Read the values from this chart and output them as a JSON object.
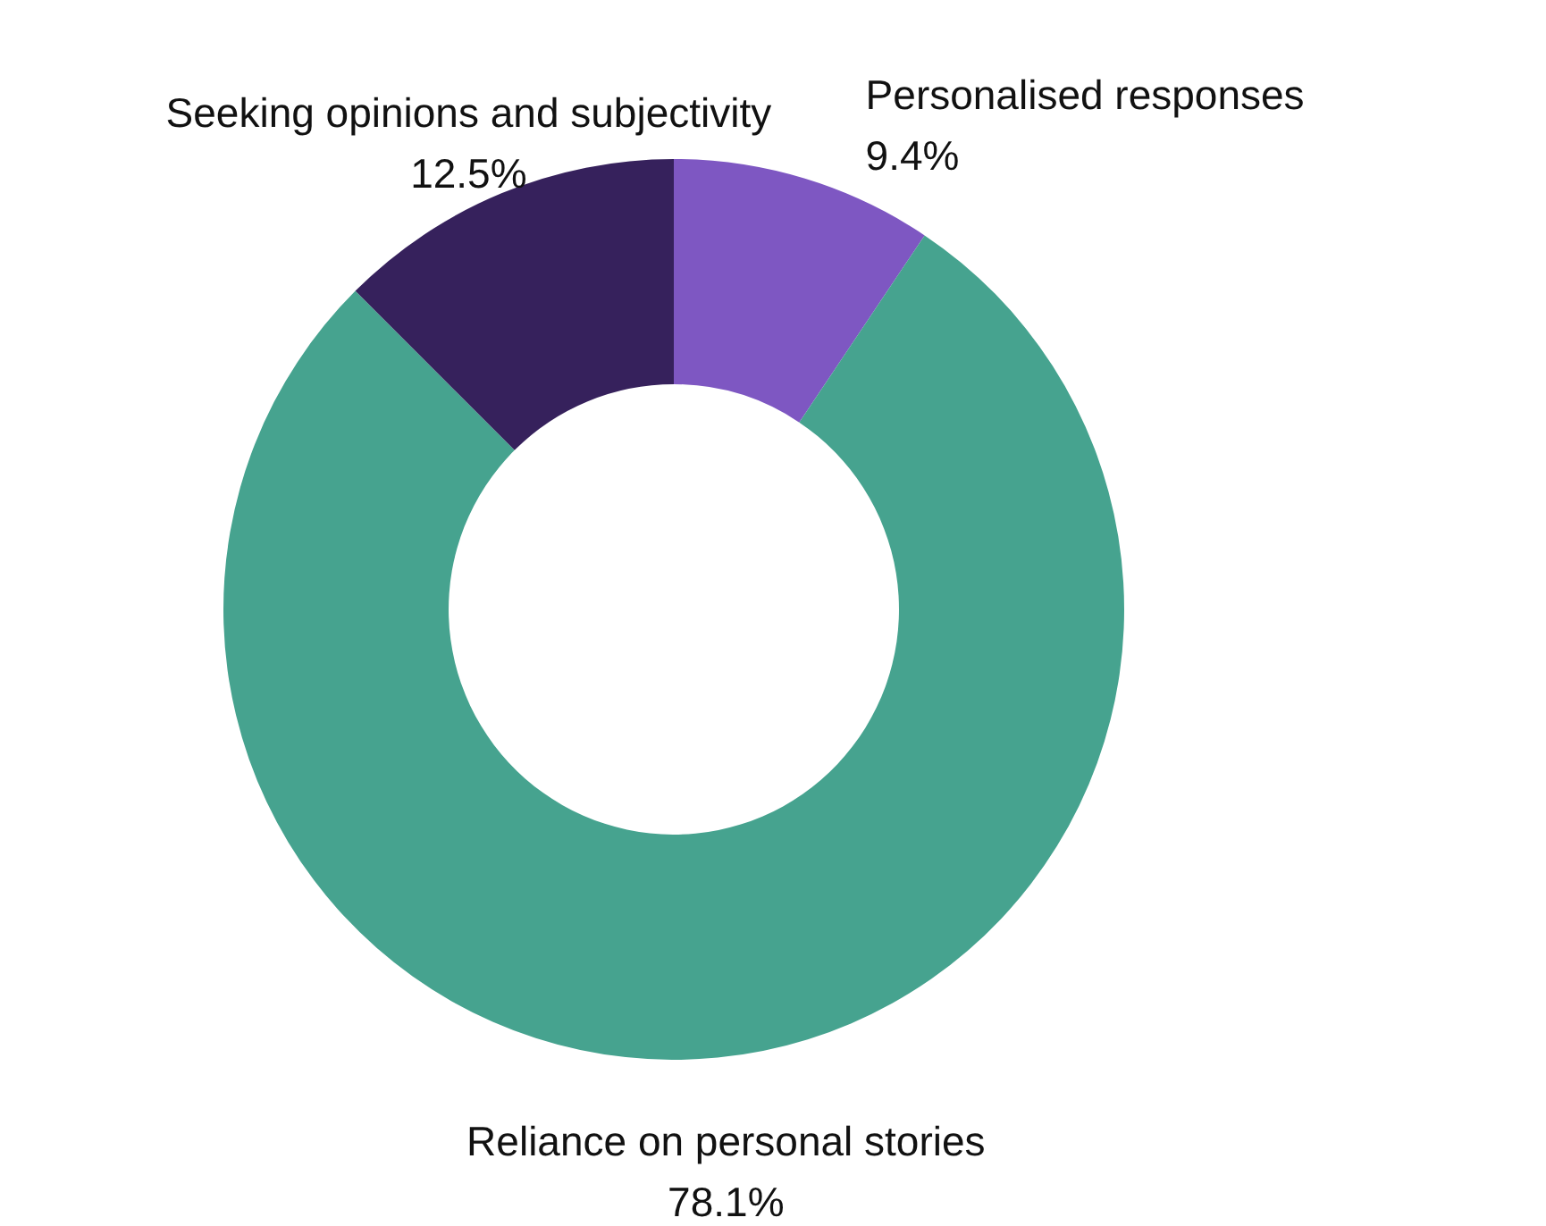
{
  "chart_data": {
    "type": "donut",
    "categories": [
      "Personalised responses",
      "Reliance on personal stories",
      "Seeking opinions and subjectivity"
    ],
    "values": [
      9.4,
      78.1,
      12.5
    ],
    "colors": [
      "#7e57c2",
      "#46a38f",
      "#36215c"
    ],
    "value_labels": [
      "9.4%",
      "78.1%",
      "12.5%"
    ]
  }
}
